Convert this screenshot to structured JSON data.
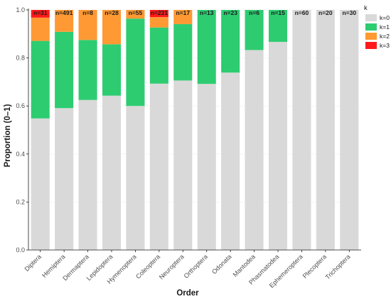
{
  "chart_data": {
    "type": "bar",
    "stacked": true,
    "xlabel": "Order",
    "ylabel": "Proportion (0–1)",
    "ylim": [
      0,
      1
    ],
    "yticks": [
      "0.0",
      "0.2",
      "0.4",
      "0.6",
      "0.8",
      "1.0"
    ],
    "grid": true,
    "legend_position": "top-right",
    "legend_title": "k",
    "categories": [
      "Diptera",
      "Hemiptera",
      "Dermaptera",
      "Lepidoptera",
      "Hymenoptera",
      "Coleoptera",
      "Neuroptera",
      "Orthoptera",
      "Odonata",
      "Mantodea",
      "Phasmatodea",
      "Ephemeroptera",
      "Plecoptera",
      "Trichoptera"
    ],
    "counts": [
      "n=31",
      "n=491",
      "n=8",
      "n=28",
      "n=55",
      "n=231",
      "n=17",
      "n=13",
      "n=23",
      "n=6",
      "n=15",
      "n=60",
      "n=20",
      "n=30"
    ],
    "series": [
      {
        "name": "k=0",
        "color": "#d9d9d9",
        "values": [
          0.548,
          0.591,
          0.625,
          0.643,
          0.6,
          0.693,
          0.706,
          0.692,
          0.739,
          0.833,
          0.867,
          1.0,
          1.0,
          1.0
        ]
      },
      {
        "name": "k=1",
        "color": "#2ecc71",
        "values": [
          0.323,
          0.318,
          0.25,
          0.214,
          0.364,
          0.234,
          0.235,
          0.308,
          0.261,
          0.167,
          0.133,
          0,
          0,
          0
        ]
      },
      {
        "name": "k=2",
        "color": "#ff9933",
        "values": [
          0.097,
          0.091,
          0.125,
          0.143,
          0.036,
          0.043,
          0.059,
          0,
          0,
          0,
          0,
          0,
          0,
          0
        ]
      },
      {
        "name": "k=3",
        "color": "#ff1a1a",
        "values": [
          0.032,
          0,
          0,
          0,
          0,
          0.03,
          0,
          0,
          0,
          0,
          0,
          0,
          0,
          0
        ]
      }
    ]
  }
}
